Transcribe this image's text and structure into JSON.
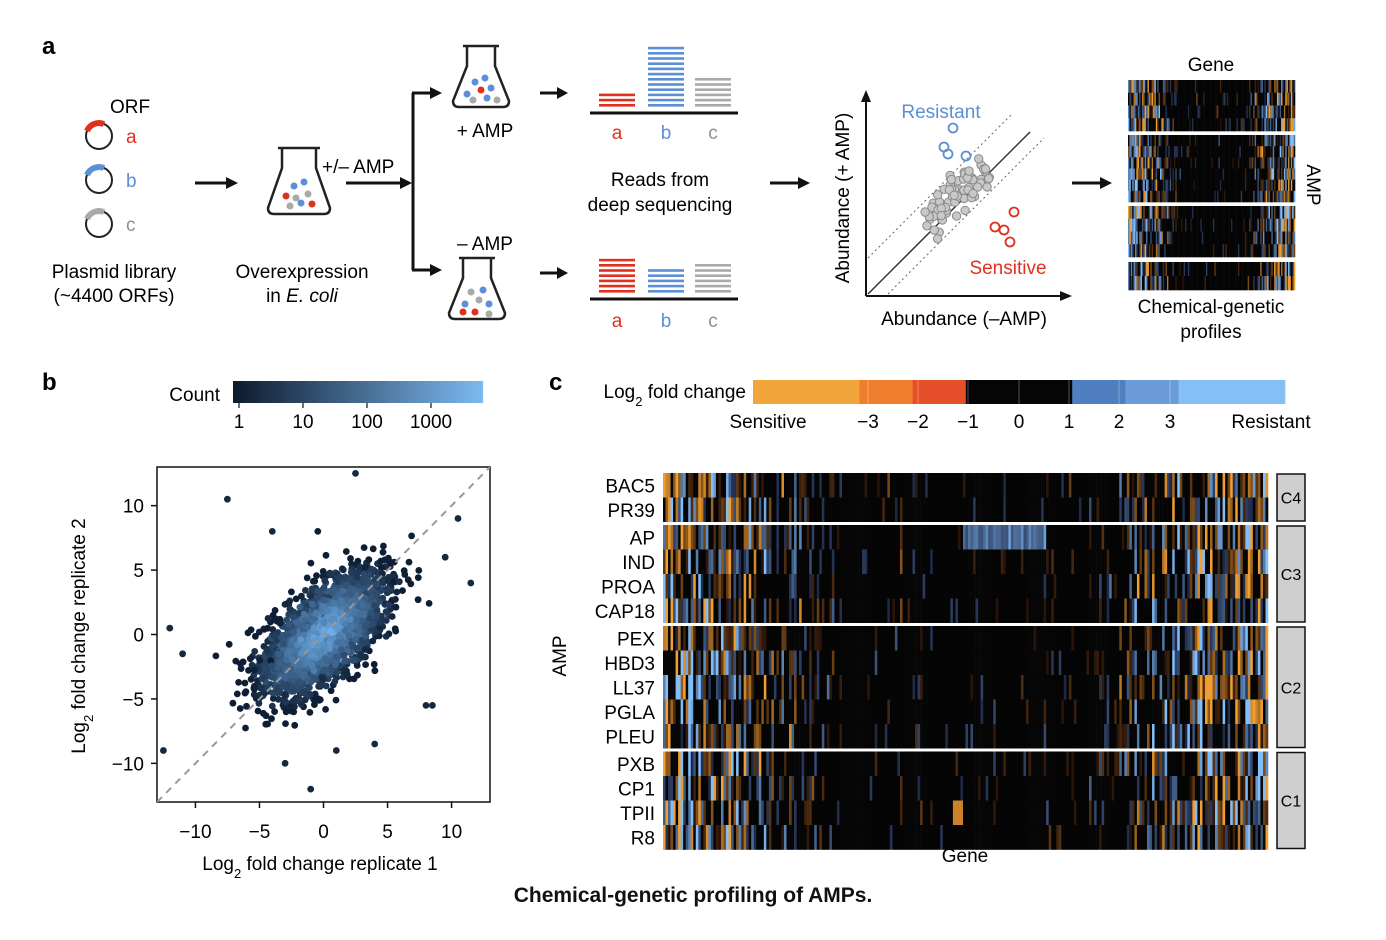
{
  "caption": "Chemical-genetic profiling of AMPs.",
  "panel_a": {
    "label": "a",
    "orf_title": "ORF",
    "orfs": [
      "a",
      "b",
      "c"
    ],
    "orf_colors": [
      "#e0301e",
      "#5b8fd6",
      "#a9a9a9"
    ],
    "library_line1": "Plasmid library",
    "library_line2": "(~4400 ORFs)",
    "overexp_line1": "Overexpression",
    "overexp_line2": "in ",
    "overexp_italic": "E. coli",
    "pm_amp": "+/– AMP",
    "plus_amp": "+ AMP",
    "minus_amp": "– AMP",
    "reads_line1": "Reads from",
    "reads_line2": "deep sequencing",
    "bar_labels": [
      "a",
      "b",
      "c"
    ],
    "scatter_y_label": "Abundance (+ AMP)",
    "scatter_x_label": "Abundance (–AMP)",
    "resistant": "Resistant",
    "sensitive": "Sensitive",
    "gene_label": "Gene",
    "amp_label": "AMP",
    "profiles_line1": "Chemical-genetic",
    "profiles_line2": "profiles"
  },
  "panel_b": {
    "label": "b",
    "colorbar_title": "Count",
    "colorbar_ticks": [
      "1",
      "10",
      "100",
      "1000"
    ],
    "colorbar_colors": [
      "#0d1b2e",
      "#1c3a5e",
      "#2f5f92",
      "#4a88c6",
      "#7ab8f0"
    ],
    "chart_data": {
      "type": "scatter",
      "xlabel": "Log2 fold change replicate 1",
      "ylabel": "Log2 fold change replicate 2",
      "xlim": [
        -13,
        13
      ],
      "ylim": [
        -13,
        13
      ],
      "xticks": [
        -10,
        -5,
        0,
        5,
        10
      ],
      "yticks": [
        -10,
        -5,
        0,
        5,
        10
      ],
      "tick_labels_x": [
        "−10",
        "−5",
        "0",
        "5",
        "10"
      ],
      "tick_labels_y": [
        "−10",
        "−5",
        "0",
        "5",
        "10"
      ],
      "diagonal": "y = x",
      "points": [
        {
          "x": 2.5,
          "y": 12.5
        },
        {
          "x": -7.5,
          "y": 10.5
        },
        {
          "x": 10.5,
          "y": 9.0
        },
        {
          "x": -12.5,
          "y": -9.0
        },
        {
          "x": 11.5,
          "y": 4.0
        },
        {
          "x": -1,
          "y": -12.0
        },
        {
          "x": 8.5,
          "y": -5.5
        },
        {
          "x": 8.0,
          "y": -5.5
        },
        {
          "x": 1.0,
          "y": -9.0
        },
        {
          "x": -11.0,
          "y": -1.5
        },
        {
          "x": -12.0,
          "y": 0.5
        },
        {
          "x": -4.0,
          "y": 8.0
        },
        {
          "x": 9.5,
          "y": 6.0
        },
        {
          "x": -3.0,
          "y": -10.0
        },
        {
          "x": 4.0,
          "y": -8.5
        }
      ]
    }
  },
  "panel_c": {
    "label": "c",
    "colorbar_title": "Log",
    "colorbar_sub": "2",
    "colorbar_title_rest": " fold change",
    "colorbar_ticks": [
      "−3",
      "−2",
      "−1",
      "0",
      "1",
      "2",
      "3"
    ],
    "colorbar_end_left": "Sensitive",
    "colorbar_end_right": "Resistant",
    "colorbar_colors": [
      "#f1a53a",
      "#f1a53a",
      "#ef7f2c",
      "#e5502a",
      "#050505",
      "#050505",
      "#4f7fc1",
      "#6b9bd8",
      "#86bff6",
      "#86bff6"
    ],
    "y_title": "AMP",
    "x_title": "Gene",
    "chart_data": {
      "type": "heatmap",
      "rows": [
        "BAC5",
        "PR39",
        "AP",
        "IND",
        "PROA",
        "CAP18",
        "PEX",
        "HBD3",
        "LL37",
        "PGLA",
        "PLEU",
        "PXB",
        "CP1",
        "TPII",
        "R8"
      ],
      "clusters": [
        {
          "name": "C4",
          "rows": [
            "BAC5",
            "PR39"
          ]
        },
        {
          "name": "C3",
          "rows": [
            "AP",
            "IND",
            "PROA",
            "CAP18"
          ]
        },
        {
          "name": "C2",
          "rows": [
            "PEX",
            "HBD3",
            "LL37",
            "PGLA",
            "PLEU"
          ]
        },
        {
          "name": "C1",
          "rows": [
            "PXB",
            "CP1",
            "TPII",
            "R8"
          ]
        }
      ],
      "value_range": [
        -4,
        4
      ]
    }
  }
}
